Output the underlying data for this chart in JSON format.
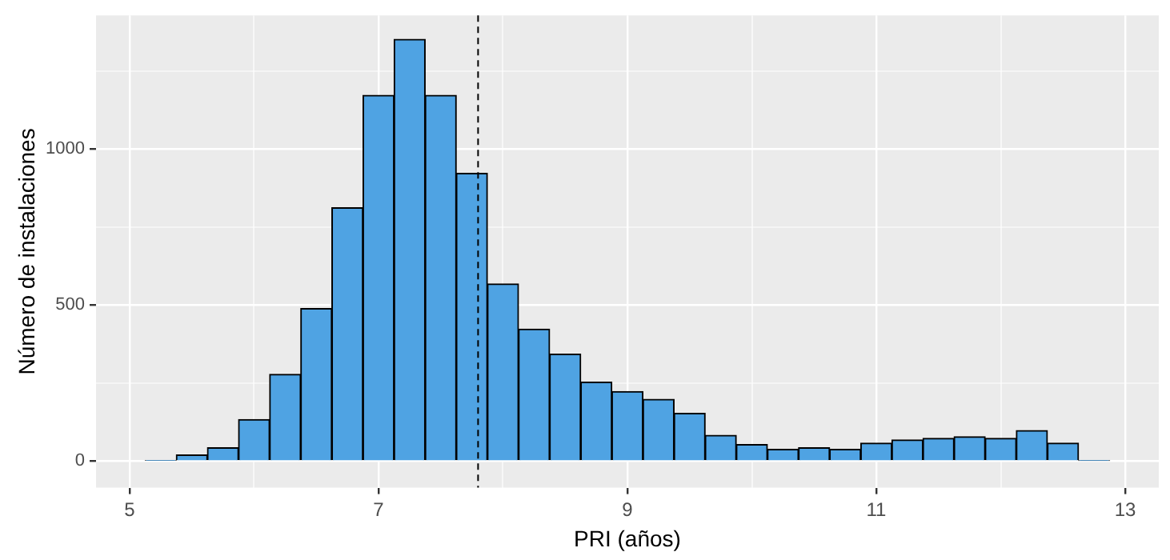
{
  "chart_data": {
    "type": "histogram",
    "xlabel": "PRI (años)",
    "ylabel": "Número de instalaciones",
    "bins": [
      5.125,
      5.375,
      5.625,
      5.875,
      6.125,
      6.375,
      6.625,
      6.875,
      7.125,
      7.375,
      7.625,
      7.875,
      8.125,
      8.375,
      8.625,
      8.875,
      9.125,
      9.375,
      9.625,
      9.875,
      10.125,
      10.375,
      10.625,
      10.875,
      11.125,
      11.375,
      11.625,
      11.875,
      12.125,
      12.375,
      12.625,
      12.875
    ],
    "values": [
      3,
      20,
      43,
      133,
      278,
      489,
      812,
      1172,
      1351,
      1172,
      922,
      568,
      423,
      343,
      253,
      223,
      198,
      153,
      83,
      53,
      38,
      43,
      38,
      58,
      68,
      73,
      78,
      73,
      98,
      58,
      2
    ],
    "color": "#4fa3e3",
    "xlim": [
      4.73,
      13.27
    ],
    "xticks": [
      5,
      {
        "value": 6,
        "label": null
      },
      7,
      {
        "value": 8,
        "label": null
      },
      9,
      {
        "value": 10,
        "label": null
      },
      11,
      {
        "value": 12,
        "label": null
      },
      13
    ],
    "ylim": [
      -85,
      1428
    ],
    "yticks": [
      0,
      {
        "value": 250,
        "label": null
      },
      500,
      {
        "value": 750,
        "label": null
      },
      1000,
      {
        "value": 1250,
        "label": null
      }
    ],
    "ref_lines": [
      {
        "axis": "x",
        "value": 7.8,
        "line_style": "dashed",
        "color": "#000000"
      }
    ],
    "grid": true,
    "legend": false
  }
}
